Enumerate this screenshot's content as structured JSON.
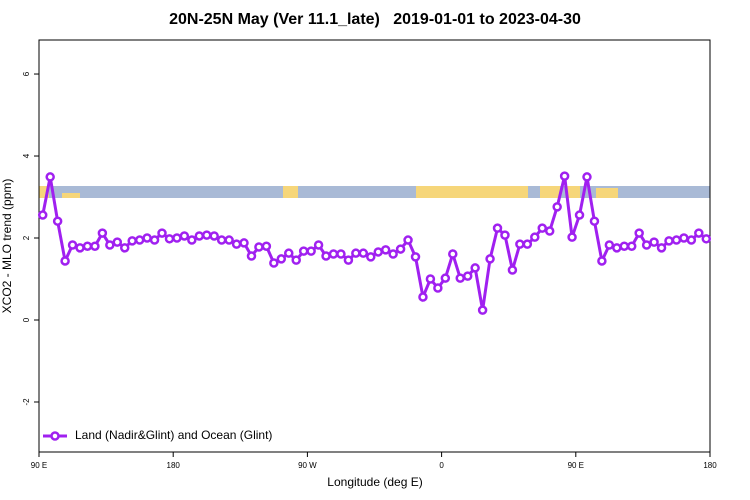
{
  "chart_data": {
    "type": "line",
    "title": "20N-25N May (Ver 11.1_late)   2019-01-01 to 2023-04-30",
    "x_label": "Longitude (deg E)",
    "y_label": "XCO2 - MLO trend (ppm)",
    "xlim": [
      90,
      540
    ],
    "xticks": [
      {
        "value": 90,
        "label": "90 E"
      },
      180,
      {
        "value": 270,
        "label": "90 W"
      },
      {
        "value": 360,
        "label": "0"
      },
      {
        "value": 450,
        "label": "90 E"
      },
      {
        "value": 540,
        "label": "180"
      }
    ],
    "ylim": [
      -3.22,
      6.83
    ],
    "yticks": [
      -2,
      0,
      2,
      4,
      6
    ],
    "legend_position": "bottom-left",
    "x": [
      92.5,
      97.5,
      102.5,
      107.5,
      112.5,
      117.5,
      122.5,
      127.5,
      132.5,
      137.5,
      142.5,
      147.5,
      152.5,
      157.5,
      162.5,
      167.5,
      172.5,
      177.5,
      182.5,
      187.5,
      192.5,
      197.5,
      202.5,
      207.5,
      212.5,
      217.5,
      222.5,
      227.5,
      232.5,
      237.5,
      242.5,
      247.5,
      252.5,
      257.5,
      262.5,
      267.5,
      272.5,
      277.5,
      282.5,
      287.5,
      292.5,
      297.5,
      302.5,
      307.5,
      312.5,
      317.5,
      322.5,
      327.5,
      332.5,
      337.5,
      342.5,
      347.5,
      352.5,
      357.5,
      362.5,
      367.5,
      372.5,
      377.5,
      382.5,
      387.5,
      392.5,
      397.5,
      402.5,
      407.5,
      412.5,
      417.5,
      422.5,
      427.5,
      432.5,
      437.5,
      442.5,
      447.5,
      452.5,
      457.5,
      462.5,
      467.5,
      472.5,
      477.5,
      482.5,
      487.5,
      492.5,
      497.5,
      502.5,
      507.5,
      512.5,
      517.5,
      522.5,
      527.5,
      532.5,
      537.5
    ],
    "series": [
      {
        "name": "Land (Nadir&Glint) and Ocean (Glint)",
        "color": "#a020f0",
        "values": [
          2.56,
          3.49,
          2.41,
          1.44,
          1.83,
          1.76,
          1.8,
          1.8,
          2.12,
          1.83,
          1.9,
          1.76,
          1.93,
          1.95,
          2.0,
          1.95,
          2.12,
          1.98,
          2.0,
          2.05,
          1.95,
          2.05,
          2.07,
          2.05,
          1.95,
          1.95,
          1.85,
          1.88,
          1.56,
          1.78,
          1.8,
          1.39,
          1.49,
          1.63,
          1.46,
          1.68,
          1.68,
          1.83,
          1.56,
          1.61,
          1.61,
          1.46,
          1.63,
          1.63,
          1.54,
          1.66,
          1.71,
          1.61,
          1.73,
          1.95,
          1.54,
          0.56,
          1.0,
          0.78,
          1.02,
          1.61,
          1.02,
          1.07,
          1.27,
          0.24,
          1.49,
          2.24,
          2.07,
          1.22,
          1.85,
          1.85,
          2.02,
          2.24,
          2.17,
          2.76,
          3.51,
          2.02,
          2.56,
          3.49,
          2.41,
          1.44,
          1.83,
          1.76,
          1.8,
          1.8,
          2.12,
          1.83,
          1.9,
          1.76,
          1.93,
          1.95,
          2.0,
          1.95,
          2.12,
          1.98
        ]
      }
    ]
  }
}
